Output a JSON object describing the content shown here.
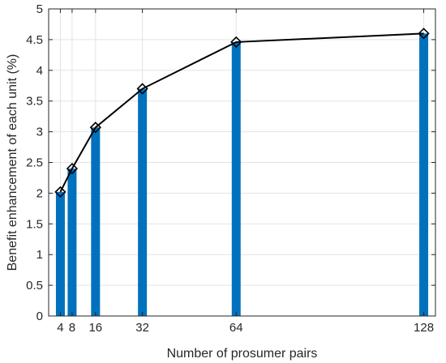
{
  "chart_data": {
    "type": "bar",
    "overlay": "line",
    "x": [
      4,
      8,
      16,
      32,
      64,
      128
    ],
    "x_tick_labels": [
      "4",
      "8",
      "16",
      "32",
      "64",
      "128"
    ],
    "values": [
      2.02,
      2.4,
      3.07,
      3.7,
      4.46,
      4.6
    ],
    "xlabel": "Number of prosumer pairs",
    "ylabel": "Benefit enhancement of each unit (%)",
    "xlim": [
      0,
      132
    ],
    "ylim": [
      0,
      5
    ],
    "y_ticks": [
      0,
      0.5,
      1,
      1.5,
      2,
      2.5,
      3,
      3.5,
      4,
      4.5,
      5
    ],
    "y_tick_labels": [
      "0",
      "0.5",
      "1",
      "1.5",
      "2",
      "2.5",
      "3",
      "3.5",
      "4",
      "4.5",
      "5"
    ],
    "grid": true,
    "bar_color": "#0072BD",
    "line_color": "#000000",
    "marker": "diamond"
  }
}
